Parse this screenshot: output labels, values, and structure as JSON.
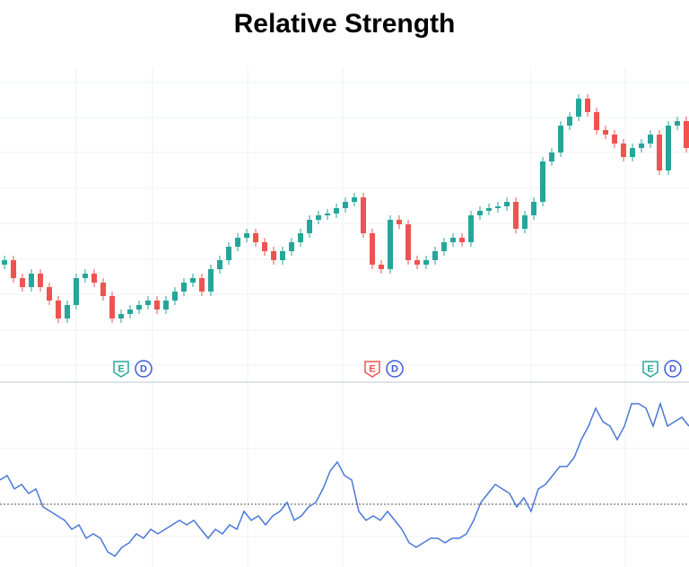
{
  "chart_data": [
    {
      "type": "candlestick",
      "title": "Relative Strength",
      "open": [
        125,
        130,
        110,
        100,
        115,
        100,
        85,
        65,
        80,
        110,
        115,
        105,
        90,
        65,
        70,
        75,
        80,
        85,
        75,
        85,
        95,
        105,
        110,
        95,
        120,
        130,
        145,
        155,
        160,
        150,
        140,
        130,
        140,
        150,
        160,
        175,
        180,
        182,
        188,
        195,
        200,
        160,
        125,
        120,
        175,
        170,
        130,
        125,
        130,
        140,
        150,
        155,
        150,
        180,
        185,
        188,
        190,
        195,
        165,
        180,
        195,
        240,
        250,
        280,
        290,
        310,
        295,
        275,
        270,
        260,
        245,
        255,
        260,
        270,
        230,
        280,
        285
      ],
      "high": [
        135,
        135,
        115,
        120,
        120,
        105,
        90,
        85,
        115,
        120,
        120,
        110,
        95,
        75,
        80,
        85,
        90,
        90,
        90,
        100,
        110,
        115,
        115,
        125,
        135,
        150,
        160,
        165,
        165,
        155,
        145,
        145,
        155,
        165,
        180,
        185,
        187,
        193,
        200,
        205,
        205,
        165,
        130,
        180,
        180,
        175,
        135,
        135,
        145,
        155,
        160,
        160,
        185,
        190,
        193,
        195,
        200,
        200,
        185,
        200,
        245,
        255,
        285,
        295,
        315,
        315,
        300,
        280,
        275,
        265,
        260,
        265,
        275,
        275,
        285,
        290,
        290
      ],
      "low": [
        120,
        105,
        95,
        95,
        95,
        80,
        60,
        60,
        75,
        105,
        100,
        85,
        60,
        60,
        65,
        70,
        75,
        70,
        70,
        80,
        90,
        100,
        90,
        90,
        115,
        125,
        140,
        150,
        145,
        135,
        125,
        125,
        135,
        145,
        155,
        170,
        175,
        177,
        183,
        190,
        155,
        120,
        115,
        115,
        165,
        125,
        120,
        120,
        125,
        135,
        145,
        145,
        145,
        175,
        180,
        183,
        185,
        160,
        160,
        175,
        190,
        235,
        245,
        275,
        285,
        290,
        270,
        265,
        255,
        240,
        240,
        250,
        255,
        225,
        225,
        275,
        250
      ],
      "close": [
        130,
        110,
        100,
        115,
        100,
        85,
        65,
        80,
        110,
        115,
        105,
        90,
        65,
        70,
        75,
        80,
        85,
        75,
        85,
        95,
        105,
        110,
        95,
        120,
        130,
        145,
        155,
        160,
        150,
        140,
        130,
        140,
        150,
        160,
        175,
        180,
        182,
        188,
        195,
        200,
        160,
        125,
        120,
        175,
        170,
        130,
        125,
        130,
        140,
        150,
        155,
        150,
        180,
        185,
        188,
        190,
        195,
        165,
        180,
        195,
        240,
        250,
        280,
        290,
        310,
        295,
        275,
        270,
        260,
        245,
        255,
        260,
        270,
        230,
        280,
        285,
        255
      ],
      "ylim": [
        0,
        340
      ],
      "up_color": "#26a69a",
      "down_color": "#ef5350",
      "events": [
        {
          "candle": 13,
          "markers": [
            "E",
            "D"
          ],
          "colors": [
            "#26a69a",
            "#3b5bdb"
          ]
        },
        {
          "candle": 41,
          "markers": [
            "E",
            "D"
          ],
          "colors": [
            "#ef5350",
            "#3b5bdb"
          ]
        },
        {
          "candle": 72,
          "markers": [
            "E",
            "D"
          ],
          "colors": [
            "#26a69a",
            "#3b5bdb"
          ]
        }
      ]
    },
    {
      "type": "line",
      "color": "#4a78d8",
      "ylim": [
        0,
        190
      ],
      "reference_line": 68,
      "values": [
        95,
        100,
        85,
        90,
        80,
        85,
        65,
        60,
        55,
        50,
        40,
        45,
        30,
        35,
        30,
        15,
        10,
        20,
        25,
        35,
        30,
        40,
        35,
        40,
        45,
        50,
        45,
        50,
        40,
        30,
        40,
        35,
        45,
        40,
        60,
        50,
        55,
        45,
        55,
        60,
        70,
        50,
        55,
        65,
        70,
        85,
        105,
        115,
        100,
        95,
        60,
        50,
        55,
        50,
        60,
        50,
        40,
        25,
        20,
        25,
        30,
        30,
        25,
        30,
        30,
        35,
        50,
        70,
        80,
        90,
        85,
        80,
        65,
        75,
        60,
        85,
        90,
        100,
        110,
        110,
        120,
        140,
        155,
        175,
        160,
        155,
        140,
        155,
        180,
        180,
        175,
        155,
        180,
        155,
        160,
        165,
        155
      ]
    }
  ]
}
